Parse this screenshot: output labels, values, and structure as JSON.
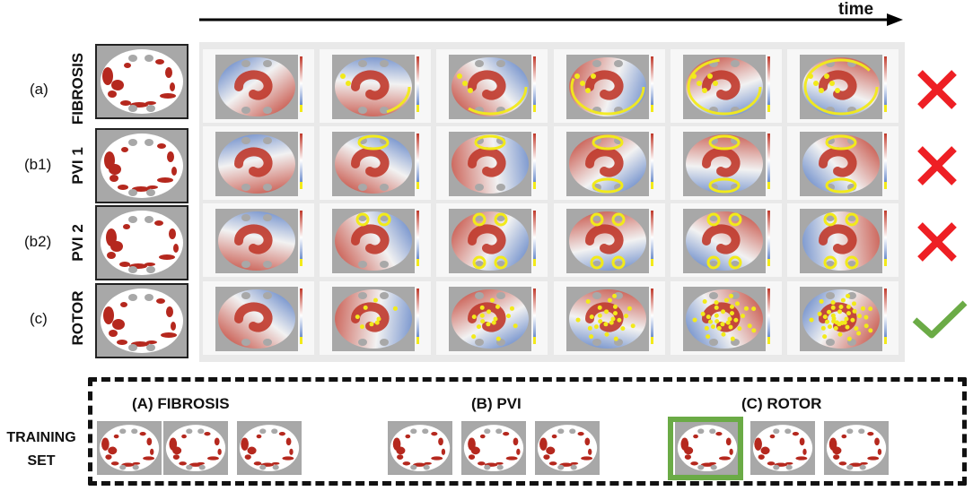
{
  "time_label": "time",
  "rows": [
    {
      "id": "fibrosis",
      "letter": "(a)",
      "name": "FIBROSIS",
      "outcome": "cross",
      "outcome_icon": "red-x-icon"
    },
    {
      "id": "pvi1",
      "letter": "(b1)",
      "name": "PVI 1",
      "outcome": "cross",
      "outcome_icon": "red-x-icon"
    },
    {
      "id": "pvi2",
      "letter": "(b2)",
      "name": "PVI 2",
      "outcome": "cross",
      "outcome_icon": "red-x-icon"
    },
    {
      "id": "rotor",
      "letter": "(c)",
      "name": "ROTOR",
      "outcome": "check",
      "outcome_icon": "green-check-icon"
    }
  ],
  "training": {
    "label_line1": "TRAINING",
    "label_line2": "SET",
    "categories": [
      {
        "label": "(A) FIBROSIS"
      },
      {
        "label": "(B) PVI"
      },
      {
        "label": "(C) ROTOR"
      }
    ],
    "selected": "(C) ROTOR"
  },
  "colors": {
    "fibrosis": "#b5281e",
    "tissue": "#ffffff",
    "veins": "#a8a8a8",
    "red_wave": "#c0392b",
    "blue_wave": "#4a72c0",
    "ablation": "#f2ea1a",
    "cross": "#ee1f24",
    "check": "#6bab46"
  }
}
